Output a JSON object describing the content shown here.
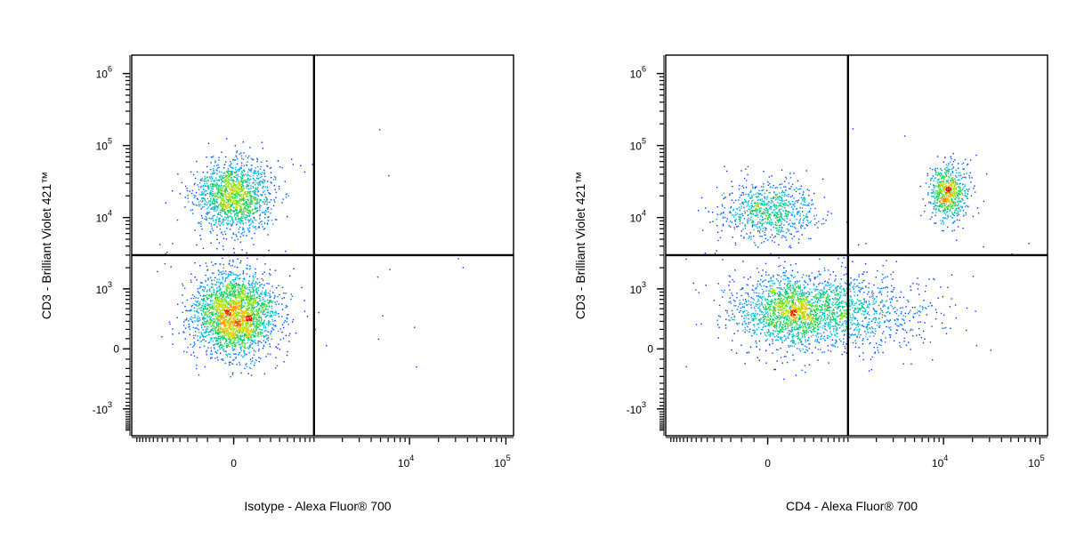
{
  "chart_data": [
    {
      "type": "scatter",
      "subtype": "flow-cytometry-density-dot-plot",
      "xlabel": "Isotype - Alexa Fluor® 700",
      "ylabel": "CD3 - Brilliant Violet 421™",
      "x_scale": "biexponential",
      "y_scale": "biexponential",
      "x_ticks": [
        {
          "value": 0,
          "label": "0"
        },
        {
          "value": 10000,
          "label": "10",
          "exp": "4"
        },
        {
          "value": 100000,
          "label": "10",
          "exp": "5"
        }
      ],
      "y_ticks": [
        {
          "value": 1000000,
          "label": "10",
          "exp": "6"
        },
        {
          "value": 100000,
          "label": "10",
          "exp": "5"
        },
        {
          "value": 10000,
          "label": "10",
          "exp": "4"
        },
        {
          "value": 1000,
          "label": "10",
          "exp": "3"
        },
        {
          "value": 0,
          "label": "0"
        },
        {
          "value": -1000,
          "label": "-10",
          "exp": "3"
        }
      ],
      "quadrant_gate": {
        "x": 1000,
        "y": 3000
      },
      "populations": [
        {
          "x_center": 0,
          "y_center": 20000,
          "count": 1500
        },
        {
          "x_center": 0,
          "y_center": 400,
          "count": 2600
        }
      ],
      "grid": false,
      "legend": "none"
    },
    {
      "type": "scatter",
      "subtype": "flow-cytometry-density-dot-plot",
      "xlabel": "CD4 - Alexa Fluor® 700",
      "ylabel": "CD3 - Brilliant Violet 421™",
      "x_scale": "biexponential",
      "y_scale": "biexponential",
      "x_ticks": [
        {
          "value": 0,
          "label": "0"
        },
        {
          "value": 10000,
          "label": "10",
          "exp": "4"
        },
        {
          "value": 100000,
          "label": "10",
          "exp": "5"
        }
      ],
      "y_ticks": [
        {
          "value": 1000000,
          "label": "10",
          "exp": "6"
        },
        {
          "value": 100000,
          "label": "10",
          "exp": "5"
        },
        {
          "value": 10000,
          "label": "10",
          "exp": "4"
        },
        {
          "value": 1000,
          "label": "10",
          "exp": "3"
        },
        {
          "value": 0,
          "label": "0"
        },
        {
          "value": -1000,
          "label": "-10",
          "exp": "3"
        }
      ],
      "quadrant_gate": {
        "x": 1000,
        "y": 3000
      },
      "populations": [
        {
          "x_center": 0,
          "y_center": 13000,
          "count": 800
        },
        {
          "x_center": 11000,
          "y_center": 22000,
          "count": 700
        },
        {
          "x_center": 300,
          "y_center": 450,
          "count": 2600
        }
      ],
      "grid": false,
      "legend": "none"
    }
  ]
}
